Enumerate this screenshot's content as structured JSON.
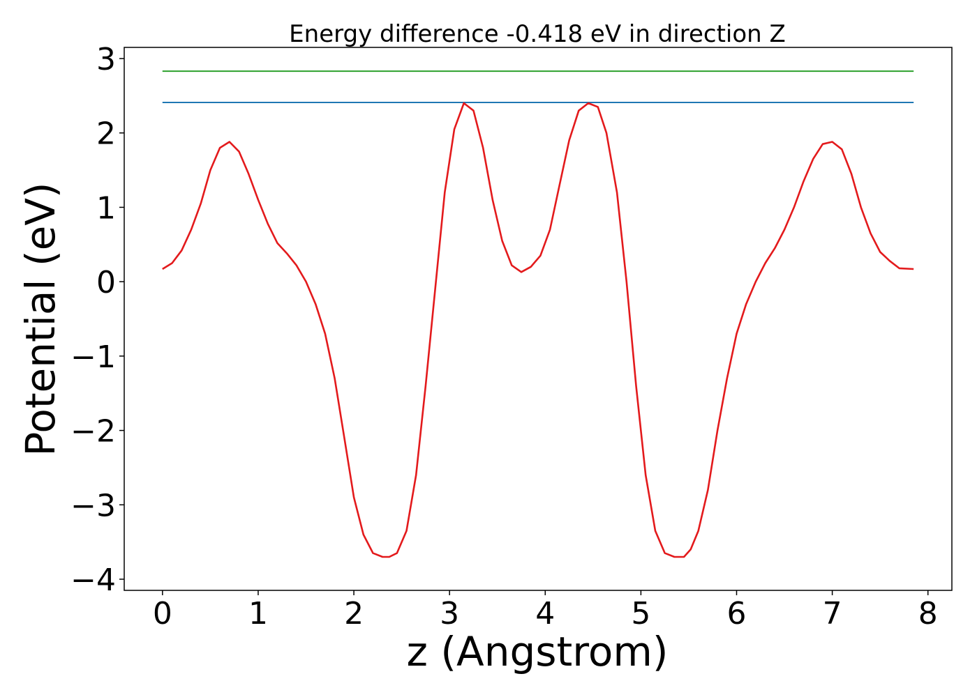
{
  "chart_data": {
    "type": "line",
    "title": "Energy difference -0.418 eV in direction Z",
    "xlabel": "z (Angstrom)",
    "ylabel": "Potential (eV)",
    "xlim": [
      -0.4,
      8.25
    ],
    "ylim": [
      -4.15,
      3.15
    ],
    "xticks": [
      0,
      1,
      2,
      3,
      4,
      5,
      6,
      7,
      8
    ],
    "xtick_labels": [
      "0",
      "1",
      "2",
      "3",
      "4",
      "5",
      "6",
      "7",
      "8"
    ],
    "yticks": [
      -4,
      -3,
      -2,
      -1,
      0,
      1,
      2,
      3
    ],
    "ytick_labels": [
      "−4",
      "−3",
      "−2",
      "−1",
      "0",
      "1",
      "2",
      "3"
    ],
    "grid": false,
    "series": [
      {
        "color": "#2ca02c",
        "x": [
          0,
          7.85
        ],
        "y": [
          2.83,
          2.83
        ]
      },
      {
        "color": "#1f77b4",
        "x": [
          0,
          7.85
        ],
        "y": [
          2.41,
          2.41
        ]
      },
      {
        "color": "#e31a1c",
        "x": [
          0,
          0.1,
          0.2,
          0.3,
          0.4,
          0.5,
          0.6,
          0.7,
          0.8,
          0.9,
          1.0,
          1.1,
          1.2,
          1.3,
          1.4,
          1.5,
          1.6,
          1.7,
          1.8,
          1.9,
          2.0,
          2.1,
          2.2,
          2.3,
          2.37,
          2.45,
          2.55,
          2.65,
          2.75,
          2.85,
          2.95,
          3.05,
          3.15,
          3.25,
          3.35,
          3.45,
          3.55,
          3.65,
          3.75,
          3.85,
          3.95,
          4.05,
          4.15,
          4.25,
          4.35,
          4.45,
          4.55,
          4.64,
          4.75,
          4.85,
          4.95,
          5.05,
          5.15,
          5.25,
          5.35,
          5.45,
          5.52,
          5.6,
          5.7,
          5.8,
          5.9,
          6.0,
          6.1,
          6.2,
          6.3,
          6.4,
          6.5,
          6.6,
          6.7,
          6.8,
          6.9,
          7.0,
          7.1,
          7.2,
          7.3,
          7.4,
          7.5,
          7.6,
          7.7,
          7.85
        ],
        "y": [
          0.17,
          0.25,
          0.42,
          0.7,
          1.05,
          1.5,
          1.8,
          1.88,
          1.75,
          1.45,
          1.1,
          0.78,
          0.52,
          0.38,
          0.22,
          0.0,
          -0.3,
          -0.7,
          -1.3,
          -2.1,
          -2.9,
          -3.4,
          -3.65,
          -3.7,
          -3.7,
          -3.65,
          -3.35,
          -2.6,
          -1.4,
          -0.1,
          1.2,
          2.05,
          2.4,
          2.3,
          1.8,
          1.1,
          0.55,
          0.22,
          0.13,
          0.2,
          0.35,
          0.7,
          1.3,
          1.9,
          2.3,
          2.4,
          2.35,
          2.0,
          1.2,
          0.0,
          -1.4,
          -2.6,
          -3.35,
          -3.65,
          -3.7,
          -3.7,
          -3.6,
          -3.35,
          -2.8,
          -2.0,
          -1.3,
          -0.7,
          -0.3,
          0.0,
          0.25,
          0.45,
          0.7,
          1.0,
          1.35,
          1.65,
          1.85,
          1.88,
          1.78,
          1.45,
          1.0,
          0.65,
          0.4,
          0.28,
          0.18,
          0.17
        ]
      }
    ]
  }
}
